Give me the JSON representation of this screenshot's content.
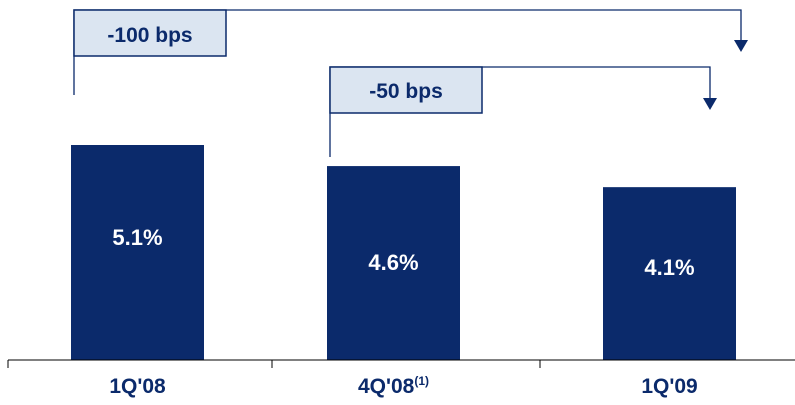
{
  "chart_data": {
    "type": "bar",
    "categories": [
      "1Q'08",
      "4Q'08",
      "1Q'09"
    ],
    "category_superscripts": [
      "",
      "(1)",
      ""
    ],
    "values": [
      5.1,
      4.6,
      4.1
    ],
    "value_labels": [
      "5.1%",
      "4.6%",
      "4.1%"
    ],
    "title": "",
    "xlabel": "",
    "ylabel": "",
    "ylim": [
      0,
      5.1
    ],
    "grid": false,
    "bar_color": "#0b2a6b",
    "annotations": [
      {
        "text": "-100 bps",
        "from": "1Q'08",
        "to": "1Q'09"
      },
      {
        "text": "-50 bps",
        "from": "4Q'08",
        "to": "1Q'09"
      }
    ]
  }
}
